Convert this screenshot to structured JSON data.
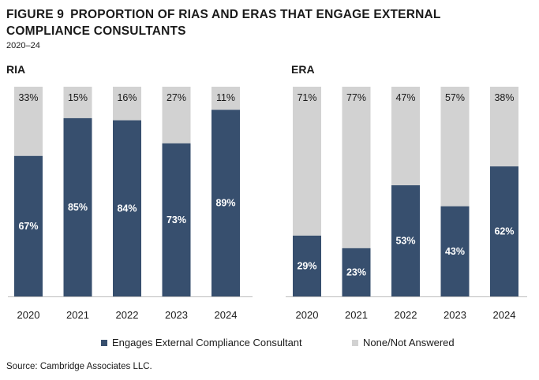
{
  "header": {
    "figure_label": "FIGURE 9",
    "title": "PROPORTION OF RIAS AND ERAS THAT ENGAGE EXTERNAL COMPLIANCE CONSULTANTS",
    "subtitle": "2020–24"
  },
  "colors": {
    "engages": "#374f6e",
    "none": "#d2d2d2",
    "axis": "#bdbdbd"
  },
  "chart_data": [
    {
      "type": "bar",
      "stacked": true,
      "title": "RIA",
      "categories": [
        "2020",
        "2021",
        "2022",
        "2023",
        "2024"
      ],
      "ylim": [
        0,
        100
      ],
      "series": [
        {
          "name": "Engages External Compliance Consultant",
          "values": [
            67,
            85,
            84,
            73,
            89
          ],
          "labels": [
            "67%",
            "85%",
            "84%",
            "73%",
            "89%"
          ]
        },
        {
          "name": "None/Not Answered",
          "values": [
            33,
            15,
            16,
            27,
            11
          ],
          "labels": [
            "33%",
            "15%",
            "16%",
            "27%",
            "11%"
          ]
        }
      ]
    },
    {
      "type": "bar",
      "stacked": true,
      "title": "ERA",
      "categories": [
        "2020",
        "2021",
        "2022",
        "2023",
        "2024"
      ],
      "ylim": [
        0,
        100
      ],
      "series": [
        {
          "name": "Engages External Compliance Consultant",
          "values": [
            29,
            23,
            53,
            43,
            62
          ],
          "labels": [
            "29%",
            "23%",
            "53%",
            "43%",
            "62%"
          ]
        },
        {
          "name": "None/Not Answered",
          "values": [
            71,
            77,
            47,
            57,
            38
          ],
          "labels": [
            "71%",
            "77%",
            "47%",
            "57%",
            "38%"
          ]
        }
      ]
    }
  ],
  "legend": {
    "engages_label": "Engages External Compliance Consultant",
    "none_label": "None/Not Answered"
  },
  "footer": {
    "source": "Source: Cambridge Associates LLC."
  }
}
